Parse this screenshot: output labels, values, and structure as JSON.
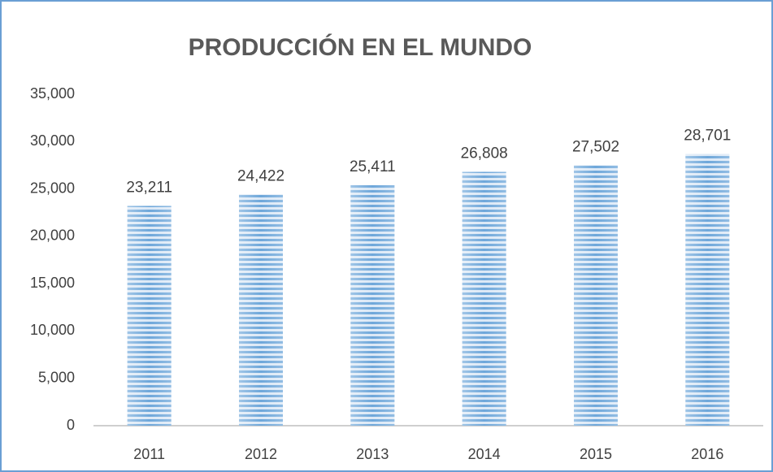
{
  "chart_data": {
    "type": "bar",
    "title": "PRODUCCIÓN EN EL MUNDO",
    "categories": [
      "2011",
      "2012",
      "2013",
      "2014",
      "2015",
      "2016"
    ],
    "values": [
      23211,
      24422,
      25411,
      26808,
      27502,
      28701
    ],
    "value_labels": [
      "23,211",
      "24,422",
      "25,411",
      "26,808",
      "27,502",
      "28,701"
    ],
    "color": "#5b9bd5",
    "ylim": [
      0,
      35000
    ],
    "yticks": [
      0,
      {
        "value": 5000,
        "label": "5,000"
      },
      {
        "value": 10000,
        "label": "10,000"
      },
      {
        "value": 15000,
        "label": "15,000"
      },
      {
        "value": 20000,
        "label": "20,000"
      },
      {
        "value": 25000,
        "label": "25,000"
      },
      {
        "value": 30000,
        "label": "30,000"
      },
      {
        "value": 35000,
        "label": "35,000"
      }
    ],
    "grid": false
  }
}
